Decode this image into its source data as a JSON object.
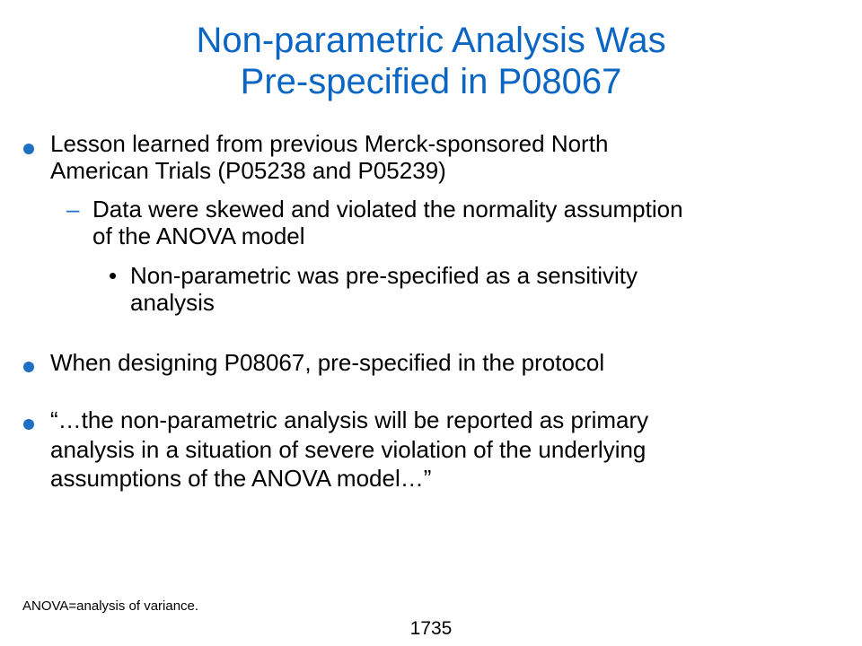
{
  "title": {
    "line1": "Non-parametric Analysis Was",
    "line2": "Pre-specified in P08067"
  },
  "bullets": [
    {
      "lines": [
        "Lesson learned from previous Merck-sponsored North",
        "American Trials (P05238 and P05239)"
      ],
      "sub": {
        "marker": "–",
        "lines": [
          "Data were skewed and violated the normality assumption",
          "of the ANOVA model"
        ],
        "sub": {
          "marker": "•",
          "lines": [
            "Non-parametric was pre-specified as a sensitivity",
            "analysis"
          ]
        }
      }
    },
    {
      "lines": [
        "When designing P08067, pre-specified in the protocol"
      ]
    },
    {
      "lines": [
        "“…the non-parametric analysis will be reported as primary",
        "analysis in a situation of severe violation of the underlying",
        "assumptions of the ANOVA model…”"
      ]
    }
  ],
  "footnote": "ANOVA=analysis of variance.",
  "page_number": "1735",
  "colors": {
    "title": "#0a66c2",
    "bullet": "#1f6fc5"
  }
}
